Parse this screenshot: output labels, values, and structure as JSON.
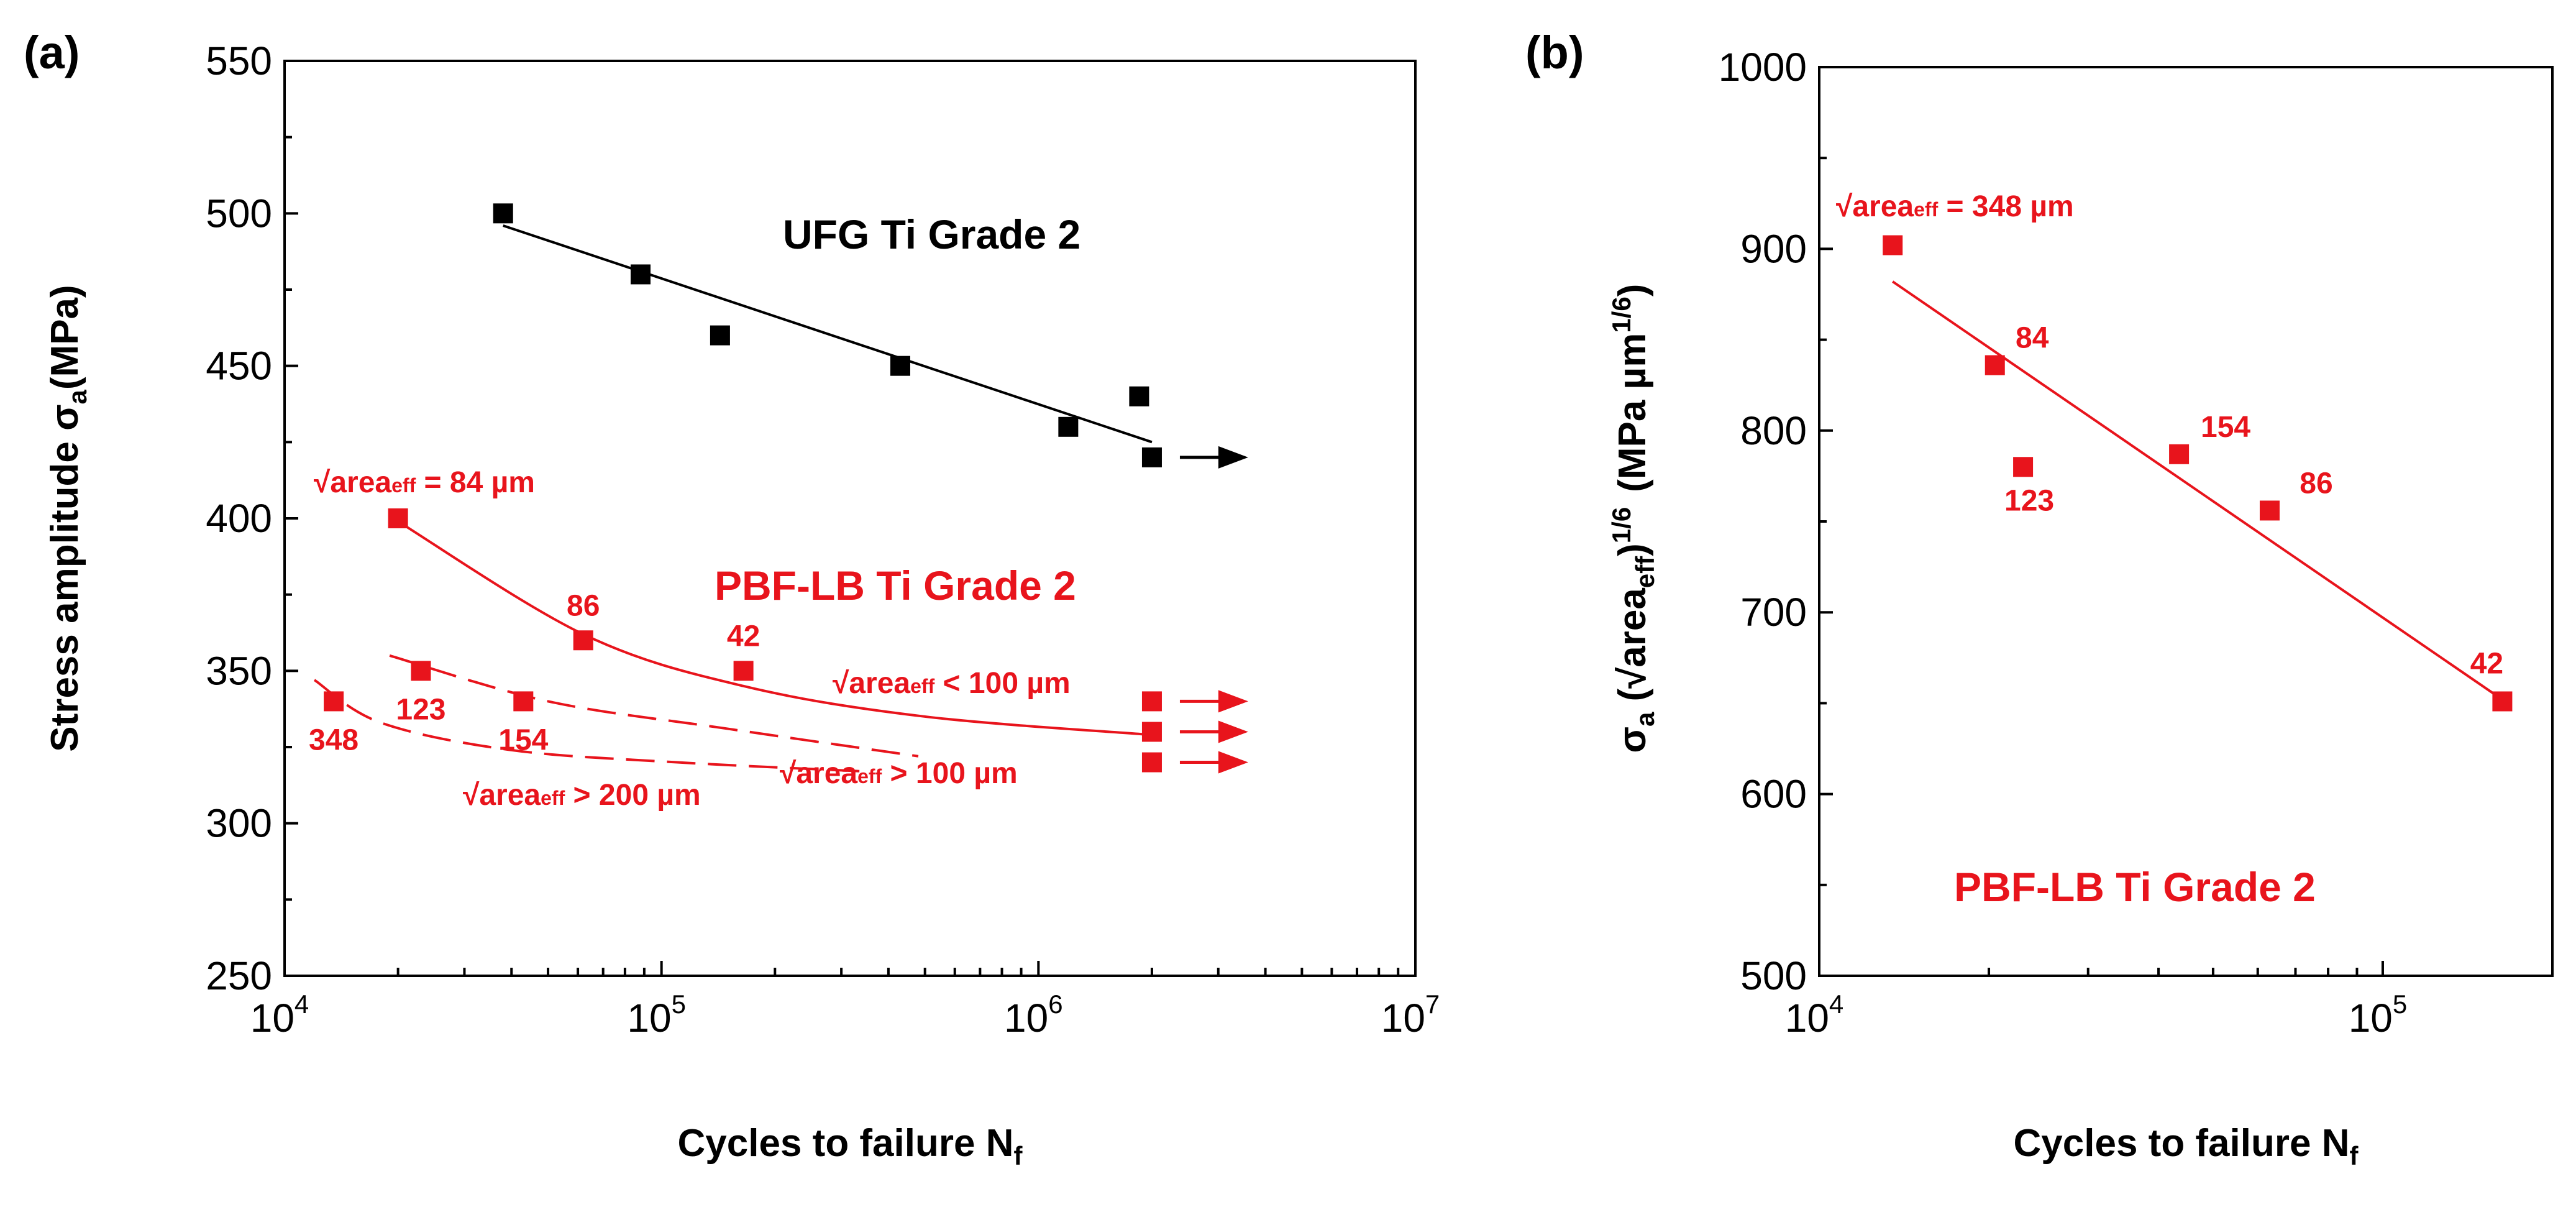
{
  "colors": {
    "black": "#000000",
    "red": "#e8141c"
  },
  "chart_data": [
    {
      "type": "scatter",
      "panel_label": "(a)",
      "xlabel": "Cycles to failure N",
      "xlabel_sub": "f",
      "ylabel": "Stress amplitude σ",
      "ylabel_sub": "a",
      "ylabel_unit": "(MPa)",
      "xscale": "log",
      "xlim": [
        10000,
        10000000
      ],
      "ylim": [
        250,
        550
      ],
      "xticks": [
        {
          "value": 10000,
          "base": "10",
          "exp": "4"
        },
        {
          "value": 100000,
          "base": "10",
          "exp": "5"
        },
        {
          "value": 1000000,
          "base": "10",
          "exp": "6"
        },
        {
          "value": 10000000,
          "base": "10",
          "exp": "7"
        }
      ],
      "yticks": [
        250,
        300,
        350,
        400,
        450,
        500,
        550
      ],
      "grid": false,
      "series": [
        {
          "name": "UFG Ti Grade 2",
          "color": "#000000",
          "points": [
            [
              38000,
              500
            ],
            [
              88000,
              480
            ],
            [
              143000,
              460
            ],
            [
              430000,
              450
            ],
            [
              1200000,
              430
            ],
            [
              1850000,
              440
            ],
            [
              2000000,
              420
            ]
          ],
          "fit": {
            "style": "solid",
            "x": [
              38000,
              2000000
            ],
            "y": [
              496,
              425
            ]
          },
          "runout_arrows": [
            {
              "x": 2000000,
              "y": 420
            }
          ]
        },
        {
          "name": "PBF-LB Ti Grade 2",
          "color": "#e8141c",
          "points": [
            [
              20000,
              400
            ],
            [
              62000,
              360
            ],
            [
              165000,
              350
            ],
            [
              23000,
              350
            ],
            [
              43000,
              340
            ],
            [
              13500,
              340
            ],
            [
              2000000,
              340
            ],
            [
              2000000,
              330
            ],
            [
              2000000,
              320
            ]
          ],
          "point_labels": [
            {
              "text": "86",
              "x": 62000,
              "y": 360,
              "pos": "above"
            },
            {
              "text": "42",
              "x": 165000,
              "y": 350,
              "pos": "above"
            },
            {
              "text": "123",
              "x": 23000,
              "y": 350,
              "pos": "below"
            },
            {
              "text": "154",
              "x": 43000,
              "y": 340,
              "pos": "below"
            },
            {
              "text": "348",
              "x": 13500,
              "y": 340,
              "pos": "below"
            }
          ],
          "runout_arrows": [
            {
              "x": 2000000,
              "y": 340
            },
            {
              "x": 2000000,
              "y": 330
            },
            {
              "x": 2000000,
              "y": 320
            }
          ],
          "fits": [
            {
              "style": "solid",
              "x": [
                20000,
                62000,
                165000,
                500000,
                2000000
              ],
              "y": [
                399,
                362,
                345,
                335,
                329
              ]
            },
            {
              "style": "dashed",
              "x": [
                19000,
                50000,
                150000,
                480000
              ],
              "y": [
                355,
                340,
                331,
                322
              ]
            },
            {
              "style": "dashed",
              "x": [
                12000,
                18000,
                40000,
                110000,
                350000
              ],
              "y": [
                347,
                333,
                324,
                320,
                317
              ]
            }
          ]
        }
      ],
      "annotations": [
        {
          "text_main": "√area",
          "text_sub": "eff",
          "text_tail": " = 84 µm"
        },
        {
          "text_main": "√area",
          "text_sub": "eff",
          "text_tail": " < 100 µm"
        },
        {
          "text_main": "√area",
          "text_sub": "eff",
          "text_tail": " > 100 µm"
        },
        {
          "text_main": "√area",
          "text_sub": "eff",
          "text_tail": " > 200 µm"
        }
      ]
    },
    {
      "type": "scatter",
      "panel_label": "(b)",
      "xlabel": "Cycles to failure N",
      "xlabel_sub": "f",
      "ylabel_prefix": "σ",
      "ylabel_prefix_sub": "a",
      "ylabel_mid": " (√area",
      "ylabel_mid_sub": "eff",
      "ylabel_mid_close": ")",
      "ylabel_mid_sup": "1/6",
      "ylabel_unit": "(MPa µm",
      "ylabel_unit_sup": "1/6",
      "ylabel_unit_close": ")",
      "xscale": "log",
      "xlim": [
        10000,
        200000
      ],
      "ylim": [
        500,
        1000
      ],
      "xticks": [
        {
          "value": 10000,
          "base": "10",
          "exp": "4"
        },
        {
          "value": 100000,
          "base": "10",
          "exp": "5"
        }
      ],
      "yticks": [
        500,
        600,
        700,
        800,
        900,
        1000
      ],
      "grid": false,
      "series": [
        {
          "name": "PBF-LB Ti Grade 2",
          "color": "#e8141c",
          "points": [
            [
              13500,
              902
            ],
            [
              20500,
              836
            ],
            [
              23000,
              780
            ],
            [
              43500,
              787
            ],
            [
              63000,
              756
            ],
            [
              163000,
              651
            ]
          ],
          "point_labels": [
            {
              "text": "84",
              "x": 20500,
              "y": 836
            },
            {
              "text": "123",
              "x": 23000,
              "y": 780
            },
            {
              "text": "154",
              "x": 43500,
              "y": 787
            },
            {
              "text": "86",
              "x": 63000,
              "y": 756
            },
            {
              "text": "42",
              "x": 163000,
              "y": 651
            }
          ],
          "fit": {
            "style": "solid",
            "x": [
              13500,
              163000
            ],
            "y": [
              882,
              652
            ]
          }
        }
      ],
      "annotations": [
        {
          "text_main": "√area",
          "text_sub": "eff",
          "text_tail": " = 348 µm"
        }
      ]
    }
  ]
}
